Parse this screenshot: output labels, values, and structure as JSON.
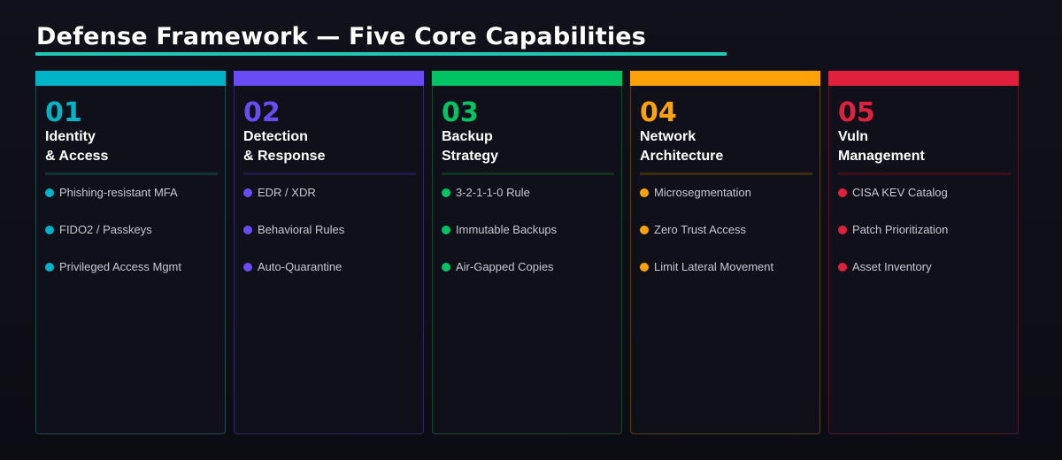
{
  "title": "Defense Framework — Five Core Capabilities",
  "colors": {
    "background": "#0d0d15",
    "card_background": "#10101a",
    "title_rule": "#1fc9b3"
  },
  "cards": [
    {
      "number": "01",
      "name_line1": "Identity",
      "name_line2": "& Access",
      "accent": "#00b3c7",
      "border": "#1d4a4a",
      "divider": "#103233",
      "items": [
        "Phishing-resistant MFA",
        "FIDO2 / Passkeys",
        "Privileged Access Mgmt"
      ]
    },
    {
      "number": "02",
      "name_line1": "Detection",
      "name_line2": "& Response",
      "accent": "#6a4cf5",
      "border": "#2e2665",
      "divider": "#1e1a48",
      "items": [
        "EDR / XDR",
        "Behavioral Rules",
        "Auto-Quarantine"
      ]
    },
    {
      "number": "03",
      "name_line1": "Backup",
      "name_line2": "Strategy",
      "accent": "#00c464",
      "border": "#15492e",
      "divider": "#0f3320",
      "items": [
        "3-2-1-1-0 Rule",
        "Immutable Backups",
        "Air-Gapped Copies"
      ]
    },
    {
      "number": "04",
      "name_line1": "Network",
      "name_line2": "Architecture",
      "accent": "#ffa20a",
      "border": "#5a4016",
      "divider": "#3c2c10",
      "items": [
        "Microsegmentation",
        "Zero Trust Access",
        "Limit Lateral Movement"
      ]
    },
    {
      "number": "05",
      "name_line1": "Vuln",
      "name_line2": "Management",
      "accent": "#e0213d",
      "border": "#511b27",
      "divider": "#3a1119",
      "items": [
        "CISA KEV Catalog",
        "Patch Prioritization",
        "Asset Inventory"
      ]
    }
  ]
}
